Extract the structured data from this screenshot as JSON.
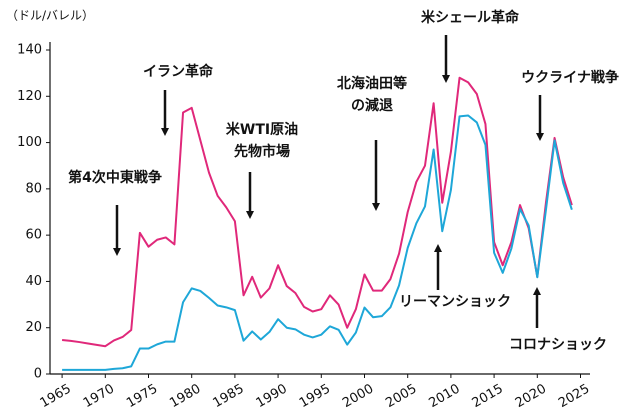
{
  "chart_data": {
    "type": "line",
    "y_unit_label": "（ドル/バレル）",
    "x": [
      1965,
      1966,
      1967,
      1968,
      1969,
      1970,
      1971,
      1972,
      1973,
      1974,
      1975,
      1976,
      1977,
      1978,
      1979,
      1980,
      1981,
      1982,
      1983,
      1984,
      1985,
      1986,
      1987,
      1988,
      1989,
      1990,
      1991,
      1992,
      1993,
      1994,
      1995,
      1996,
      1997,
      1998,
      1999,
      2000,
      2001,
      2002,
      2003,
      2004,
      2005,
      2006,
      2007,
      2008,
      2009,
      2010,
      2011,
      2012,
      2013,
      2014,
      2015,
      2016,
      2017,
      2018,
      2019,
      2020,
      2021,
      2022,
      2023,
      2024
    ],
    "series": [
      {
        "color": "#e0287a",
        "values": [
          14.7,
          14.3,
          13.8,
          13.2,
          12.6,
          12,
          14.5,
          16,
          19,
          61,
          55,
          58,
          59,
          56,
          113,
          115,
          101,
          87,
          77,
          72,
          66,
          34,
          42,
          33,
          37,
          47,
          38,
          35,
          29,
          27,
          28,
          34,
          30,
          20,
          28,
          43,
          36,
          36,
          41,
          52,
          70,
          83,
          90,
          117,
          74,
          96,
          128,
          126,
          121,
          108,
          57,
          47,
          57,
          73,
          63,
          42,
          74,
          102,
          85,
          73
        ]
      },
      {
        "color": "#1ea7d8",
        "values": [
          1.8,
          1.8,
          1.8,
          1.8,
          1.8,
          1.8,
          2.2,
          2.5,
          3.3,
          11,
          11,
          12.8,
          14,
          14,
          31,
          37,
          35.9,
          32.9,
          29.6,
          28.8,
          27.6,
          14.4,
          18.4,
          14.9,
          18.2,
          23.7,
          20,
          19.3,
          17,
          15.8,
          17,
          20.6,
          19.1,
          12.7,
          17.9,
          28.7,
          24.5,
          25,
          28.8,
          38.3,
          54.5,
          65.1,
          72.4,
          97,
          61.7,
          79.5,
          111.3,
          111.7,
          108.7,
          99,
          52.4,
          43.7,
          54.2,
          71.3,
          64.2,
          41.8,
          70.9,
          100.9,
          82.5,
          71
        ]
      }
    ],
    "xlim": [
      1963.6,
      2026.1
    ],
    "xticks": [
      1965,
      1970,
      1975,
      1980,
      1985,
      1990,
      1995,
      2000,
      2005,
      2010,
      2015,
      2020,
      2025
    ],
    "ylim": [
      0,
      140
    ],
    "yticks": [
      0,
      20,
      40,
      60,
      80,
      100,
      120,
      140
    ],
    "grid": false,
    "annotations": [
      [
        "第4次中東戦争"
      ],
      [
        "イラン革命"
      ],
      [
        "米WTI原油",
        "先物市場"
      ],
      [
        "北海油田等",
        "の減退"
      ],
      [
        "米シェール革命"
      ],
      [
        "ウクライナ戦争"
      ],
      [
        "リーマンショック"
      ],
      [
        "コロナショック"
      ]
    ]
  }
}
